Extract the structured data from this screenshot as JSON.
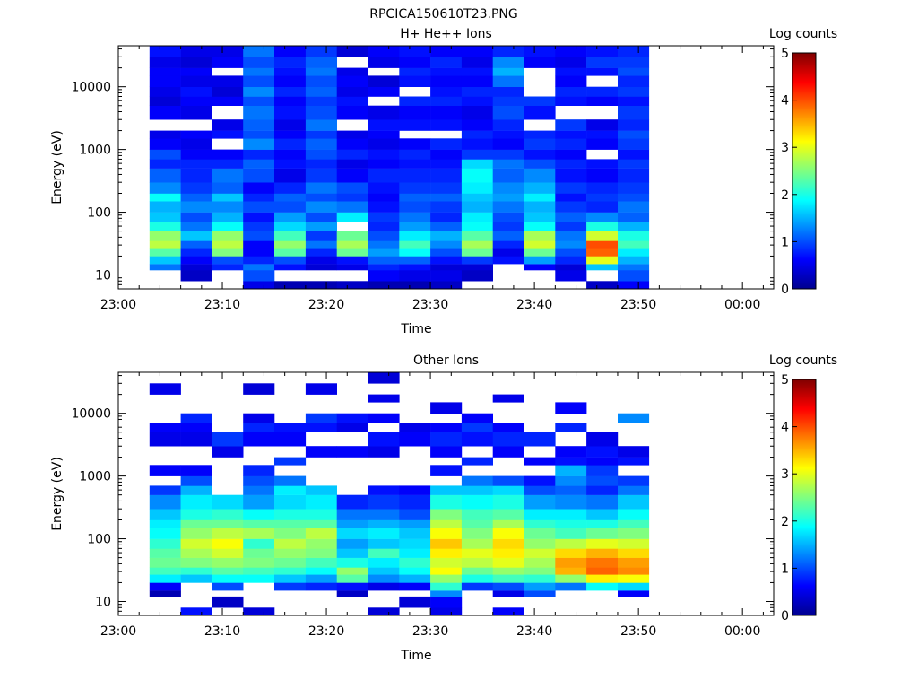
{
  "figure_title": "RPCICA150610T23.PNG",
  "chart_data": [
    {
      "type": "heatmap",
      "title": "H+ He++ Ions",
      "xlabel": "Time",
      "ylabel": "Energy (eV)",
      "colorbar_label": "Log counts",
      "colorbar_ticks": [
        "0",
        "1",
        "2",
        "3",
        "4",
        "5"
      ],
      "colorbar_range": [
        0,
        5
      ],
      "y_scale": "log",
      "y_range_ev": [
        6,
        45000
      ],
      "x_ticks": [
        "23:00",
        "23:10",
        "23:20",
        "23:30",
        "23:40",
        "23:50",
        "00:00"
      ],
      "x_tick_minutes": [
        0,
        10,
        20,
        30,
        40,
        50,
        60
      ],
      "x_range_minutes": [
        0,
        63
      ],
      "y_ticks": [
        "10",
        "100",
        "1000",
        "10000"
      ],
      "y_tick_values": [
        10,
        100,
        1000,
        10000
      ],
      "energy_bin_edges_ev": [
        6,
        8,
        12,
        15,
        20,
        27,
        35,
        50,
        70,
        100,
        150,
        200,
        300,
        500,
        700,
        1000,
        1500,
        2000,
        3000,
        5000,
        7000,
        10000,
        15000,
        20000,
        30000,
        45000
      ],
      "time_bins": [
        {
          "start": "23:03",
          "end": "23:06",
          "values": [
            null,
            null,
            1.2,
            1.6,
            2.3,
            2.8,
            2.6,
            2.0,
            1.6,
            1.5,
            1.9,
            1.3,
            1.1,
            0.8,
            1.0,
            0.6,
            0.5,
            null,
            0.6,
            0.4,
            0.5,
            0.6,
            0.6,
            0.5,
            0.7
          ]
        },
        {
          "start": "23:06",
          "end": "23:09",
          "values": [
            null,
            0.3,
            0.4,
            0.6,
            0.8,
            1.1,
            1.6,
            1.2,
            1.0,
            1.3,
            1.1,
            0.9,
            0.8,
            0.8,
            0.6,
            0.5,
            0.6,
            null,
            0.5,
            0.6,
            0.7,
            0.5,
            0.6,
            0.4,
            0.5
          ]
        },
        {
          "start": "23:09",
          "end": "23:12",
          "values": [
            null,
            null,
            0.8,
            1.0,
            2.5,
            2.8,
            2.6,
            1.9,
            1.5,
            1.3,
            1.6,
            1.1,
            1.2,
            0.8,
            0.6,
            null,
            0.7,
            0.5,
            null,
            0.6,
            0.4,
            0.5,
            null,
            0.6,
            0.5
          ]
        },
        {
          "start": "23:12",
          "end": "23:15",
          "values": [
            0.5,
            1.0,
            1.2,
            0.8,
            0.6,
            0.6,
            1.0,
            0.9,
            0.7,
            1.0,
            0.8,
            0.6,
            1.0,
            1.1,
            0.8,
            1.3,
            1.0,
            1.1,
            1.2,
            1.0,
            1.3,
            1.0,
            1.2,
            1.0,
            1.2
          ]
        },
        {
          "start": "23:15",
          "end": "23:18",
          "values": [
            0.2,
            null,
            0.7,
            1.0,
            2.3,
            2.6,
            2.2,
            1.7,
            1.4,
            1.0,
            1.1,
            0.8,
            0.5,
            0.7,
            0.6,
            0.8,
            0.6,
            0.5,
            0.7,
            0.6,
            0.8,
            0.6,
            0.7,
            0.8,
            0.6
          ]
        },
        {
          "start": "23:18",
          "end": "23:21",
          "values": [
            0.2,
            null,
            0.4,
            0.5,
            0.8,
            1.2,
            0.9,
            1.4,
            1.0,
            1.3,
            1.0,
            1.2,
            0.9,
            0.8,
            1.0,
            1.1,
            0.9,
            1.2,
            1.0,
            0.9,
            1.1,
            1.0,
            1.2,
            1.1,
            0.9
          ]
        },
        {
          "start": "23:21",
          "end": "23:24",
          "values": [
            0.3,
            null,
            0.5,
            0.7,
            2.4,
            2.7,
            2.4,
            null,
            1.8,
            1.2,
            0.9,
            1.0,
            0.6,
            0.5,
            0.8,
            0.6,
            0.5,
            null,
            0.6,
            0.7,
            0.5,
            0.6,
            0.5,
            null,
            0.4
          ]
        },
        {
          "start": "23:24",
          "end": "23:27",
          "values": [
            0.2,
            0.6,
            0.8,
            1.1,
            1.4,
            1.2,
            1.0,
            0.8,
            0.9,
            0.7,
            0.6,
            0.7,
            0.8,
            0.6,
            0.7,
            0.5,
            0.6,
            0.7,
            0.5,
            null,
            0.6,
            0.4,
            null,
            0.5,
            0.6
          ]
        },
        {
          "start": "23:27",
          "end": "23:30",
          "values": [
            0.2,
            0.5,
            0.7,
            1.1,
            1.9,
            2.2,
            1.8,
            1.4,
            1.2,
            1.0,
            1.1,
            0.9,
            0.8,
            0.7,
            0.8,
            0.6,
            null,
            0.7,
            0.6,
            0.8,
            null,
            0.7,
            0.8,
            0.6,
            0.7
          ]
        },
        {
          "start": "23:30",
          "end": "23:33",
          "values": [
            0.3,
            0.5,
            0.4,
            0.7,
            1.0,
            1.3,
            1.5,
            1.1,
            0.8,
            0.9,
            1.1,
            0.9,
            0.8,
            0.7,
            0.6,
            0.8,
            null,
            0.7,
            0.6,
            0.8,
            0.7,
            0.6,
            0.7,
            0.8,
            0.6
          ]
        },
        {
          "start": "23:33",
          "end": "23:36",
          "values": [
            null,
            0.3,
            0.4,
            0.9,
            2.4,
            2.7,
            2.3,
            1.9,
            1.8,
            1.5,
            1.6,
            1.8,
            1.9,
            1.7,
            0.9,
            0.7,
            0.8,
            0.6,
            0.5,
            0.7,
            0.8,
            0.6,
            0.7,
            0.5,
            0.6
          ]
        },
        {
          "start": "23:36",
          "end": "23:39",
          "values": [
            null,
            null,
            null,
            0.7,
            0.5,
            0.8,
            1.1,
            0.9,
            1.0,
            1.2,
            1.4,
            1.3,
            1.1,
            1.2,
            0.9,
            0.6,
            0.7,
            0.8,
            1.0,
            0.9,
            0.8,
            1.2,
            1.5,
            1.3,
            0.8
          ]
        },
        {
          "start": "23:39",
          "end": "23:42",
          "values": [
            null,
            null,
            0.6,
            1.4,
            2.4,
            2.9,
            2.7,
            1.9,
            1.6,
            1.5,
            1.8,
            1.5,
            1.3,
            1.0,
            0.7,
            0.9,
            0.8,
            null,
            0.7,
            0.9,
            null,
            null,
            null,
            0.6,
            0.7
          ]
        },
        {
          "start": "23:42",
          "end": "23:45",
          "values": [
            null,
            0.5,
            0.4,
            0.8,
            1.0,
            1.3,
            1.2,
            0.9,
            1.1,
            0.9,
            0.7,
            0.9,
            0.7,
            0.8,
            0.6,
            0.8,
            0.7,
            0.9,
            null,
            0.7,
            0.8,
            0.6,
            0.7,
            0.5,
            0.6
          ]
        },
        {
          "start": "23:45",
          "end": "23:48",
          "values": [
            0.3,
            null,
            1.6,
            3.0,
            3.9,
            4.0,
            2.9,
            2.0,
            1.3,
            0.8,
            0.9,
            0.8,
            0.6,
            0.7,
            null,
            0.6,
            0.7,
            0.5,
            null,
            0.6,
            0.8,
            null,
            0.7,
            0.9,
            0.7
          ]
        },
        {
          "start": "23:48",
          "end": "23:51",
          "values": [
            0.6,
            1.0,
            1.2,
            1.5,
            1.8,
            2.2,
            2.0,
            1.5,
            1.1,
            1.2,
            1.0,
            0.9,
            0.8,
            0.9,
            0.7,
            0.9,
            1.0,
            0.8,
            0.9,
            0.7,
            0.9,
            0.8,
            1.0,
            0.9,
            0.8
          ]
        }
      ]
    },
    {
      "type": "heatmap",
      "title": "Other Ions",
      "xlabel": "Time",
      "ylabel": "Energy (eV)",
      "colorbar_label": "Log counts",
      "colorbar_ticks": [
        "0",
        "1",
        "2",
        "3",
        "4",
        "5"
      ],
      "colorbar_range": [
        0,
        5
      ],
      "y_scale": "log",
      "y_range_ev": [
        6,
        45000
      ],
      "x_ticks": [
        "23:00",
        "23:10",
        "23:20",
        "23:30",
        "23:40",
        "23:50",
        "00:00"
      ],
      "x_tick_minutes": [
        0,
        10,
        20,
        30,
        40,
        50,
        60
      ],
      "x_range_minutes": [
        0,
        63
      ],
      "y_ticks": [
        "10",
        "100",
        "1000",
        "10000"
      ],
      "y_tick_values": [
        10,
        100,
        1000,
        10000
      ],
      "energy_bin_edges_ev": [
        6,
        8,
        12,
        15,
        20,
        27,
        35,
        50,
        70,
        100,
        150,
        200,
        300,
        500,
        700,
        1000,
        1500,
        2000,
        3000,
        5000,
        7000,
        10000,
        15000,
        20000,
        30000,
        45000
      ],
      "time_bins": [
        {
          "start": "23:03",
          "end": "23:06",
          "values": [
            null,
            null,
            0.2,
            0.6,
            1.8,
            2.2,
            2.4,
            2.3,
            2.1,
            1.9,
            1.8,
            1.6,
            1.3,
            0.9,
            null,
            0.6,
            null,
            null,
            0.5,
            0.6,
            null,
            null,
            null,
            0.5,
            null
          ]
        },
        {
          "start": "23:06",
          "end": "23:09",
          "values": [
            0.7,
            null,
            null,
            null,
            1.6,
            2.1,
            2.5,
            2.7,
            2.9,
            2.6,
            2.4,
            2.0,
            1.8,
            1.5,
            1.0,
            0.6,
            null,
            null,
            0.5,
            0.6,
            0.8,
            null,
            null,
            null,
            null
          ]
        },
        {
          "start": "23:09",
          "end": "23:12",
          "values": [
            null,
            0.3,
            null,
            1.0,
            1.9,
            2.3,
            2.6,
            2.9,
            3.1,
            2.8,
            2.4,
            2.1,
            1.7,
            null,
            null,
            null,
            null,
            0.5,
            0.9,
            null,
            null,
            null,
            null,
            null,
            null
          ]
        },
        {
          "start": "23:12",
          "end": "23:15",
          "values": [
            0.4,
            null,
            null,
            null,
            1.9,
            2.2,
            2.5,
            2.4,
            2.1,
            2.7,
            2.3,
            1.9,
            1.4,
            1.2,
            1.0,
            0.8,
            null,
            null,
            0.6,
            0.8,
            0.5,
            null,
            null,
            0.4,
            null
          ]
        },
        {
          "start": "23:15",
          "end": "23:18",
          "values": [
            null,
            null,
            null,
            0.9,
            1.6,
            2.1,
            2.4,
            2.6,
            2.8,
            2.5,
            2.3,
            2.0,
            1.7,
            1.8,
            1.2,
            null,
            0.9,
            null,
            0.6,
            0.7,
            null,
            null,
            null,
            null,
            null
          ]
        },
        {
          "start": "23:18",
          "end": "23:21",
          "values": [
            null,
            null,
            null,
            0.8,
            1.4,
            1.9,
            2.2,
            2.5,
            2.6,
            2.8,
            2.3,
            2.0,
            1.8,
            1.6,
            null,
            null,
            null,
            0.6,
            null,
            0.7,
            0.9,
            null,
            null,
            0.5,
            null
          ]
        },
        {
          "start": "23:21",
          "end": "23:24",
          "values": [
            null,
            null,
            0.3,
            0.7,
            2.3,
            2.6,
            2.0,
            1.6,
            1.4,
            1.7,
            1.4,
            1.2,
            0.8,
            null,
            null,
            null,
            null,
            0.6,
            null,
            0.5,
            0.7,
            null,
            null,
            null,
            null
          ]
        },
        {
          "start": "23:24",
          "end": "23:27",
          "values": [
            0.4,
            null,
            null,
            0.5,
            1.3,
            1.6,
            1.8,
            2.2,
            1.6,
            1.8,
            1.5,
            1.2,
            0.9,
            0.7,
            null,
            null,
            null,
            0.5,
            0.7,
            null,
            0.6,
            null,
            0.5,
            null,
            0.4
          ]
        },
        {
          "start": "23:27",
          "end": "23:30",
          "values": [
            null,
            0.4,
            null,
            0.6,
            1.5,
            1.9,
            2.1,
            1.8,
            1.7,
            1.6,
            1.4,
            1.0,
            0.8,
            0.6,
            null,
            null,
            null,
            null,
            0.6,
            0.5,
            null,
            null,
            null,
            null,
            null
          ]
        },
        {
          "start": "23:30",
          "end": "23:33",
          "values": [
            0.5,
            0.6,
            1.3,
            2.1,
            2.6,
            3.1,
            2.9,
            3.2,
            3.4,
            3.1,
            2.8,
            2.5,
            2.0,
            1.6,
            null,
            0.7,
            null,
            0.6,
            0.8,
            0.6,
            null,
            0.5,
            null,
            null,
            null
          ]
        },
        {
          "start": "23:33",
          "end": "23:36",
          "values": [
            null,
            null,
            null,
            0.9,
            2.0,
            2.4,
            2.8,
            3.0,
            2.7,
            2.5,
            2.3,
            2.2,
            1.9,
            1.6,
            1.2,
            null,
            0.8,
            null,
            0.7,
            0.9,
            0.6,
            null,
            null,
            null,
            null
          ]
        },
        {
          "start": "23:36",
          "end": "23:39",
          "values": [
            0.6,
            null,
            0.5,
            1.0,
            2.2,
            2.6,
            3.0,
            3.2,
            3.3,
            3.1,
            2.7,
            2.3,
            2.0,
            1.7,
            1.0,
            null,
            null,
            0.6,
            0.8,
            0.6,
            null,
            null,
            0.5,
            null,
            null
          ]
        },
        {
          "start": "23:39",
          "end": "23:42",
          "values": [
            null,
            null,
            1.0,
            1.4,
            2.1,
            2.5,
            2.7,
            2.9,
            2.6,
            2.4,
            2.1,
            1.8,
            1.4,
            1.0,
            0.7,
            null,
            0.6,
            null,
            0.8,
            null,
            null,
            null,
            null,
            null,
            null
          ]
        },
        {
          "start": "23:42",
          "end": "23:45",
          "values": [
            null,
            null,
            null,
            1.2,
            2.6,
            3.5,
            3.6,
            3.3,
            2.8,
            2.2,
            2.0,
            1.8,
            1.3,
            1.1,
            1.3,
            1.5,
            0.7,
            0.6,
            null,
            0.8,
            null,
            0.6,
            null,
            null,
            null
          ]
        },
        {
          "start": "23:45",
          "end": "23:48",
          "values": [
            null,
            null,
            null,
            1.9,
            3.2,
            3.9,
            3.8,
            3.5,
            3.0,
            2.4,
            2.0,
            1.6,
            1.2,
            0.8,
            1.0,
            0.9,
            0.6,
            0.7,
            0.5,
            null,
            null,
            null,
            null,
            null,
            null
          ]
        },
        {
          "start": "23:48",
          "end": "23:51",
          "values": [
            null,
            null,
            0.6,
            1.7,
            3.1,
            3.7,
            3.6,
            3.3,
            2.9,
            2.5,
            2.2,
            1.9,
            1.6,
            1.2,
            0.9,
            null,
            0.7,
            0.5,
            null,
            null,
            1.3,
            null,
            null,
            null,
            null
          ]
        }
      ]
    }
  ]
}
